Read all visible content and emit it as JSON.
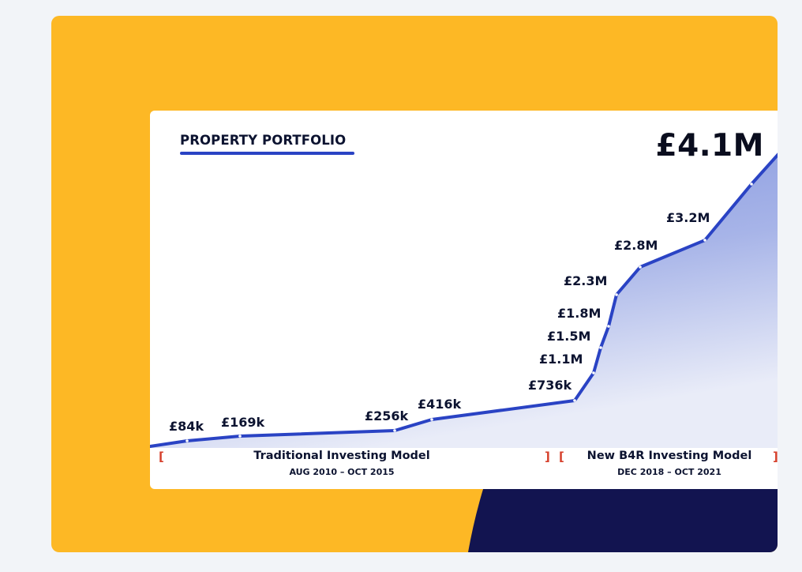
{
  "chart_data": {
    "type": "area",
    "title": "PROPERTY PORTFOLIO",
    "headline_value": "£4.1M",
    "xlabel": "",
    "ylabel": "",
    "ylim": [
      0,
      4100000
    ],
    "grid": false,
    "legend": "none",
    "points": [
      {
        "label": "",
        "value": 0
      },
      {
        "label": "£84k",
        "value": 84000
      },
      {
        "label": "£169k",
        "value": 169000
      },
      {
        "label": "£256k",
        "value": 256000
      },
      {
        "label": "£416k",
        "value": 416000
      },
      {
        "label": "£736k",
        "value": 736000
      },
      {
        "label": "£1.1M",
        "value": 1100000
      },
      {
        "label": "£1.5M",
        "value": 1500000
      },
      {
        "label": "£1.8M",
        "value": 1800000
      },
      {
        "label": "£2.3M",
        "value": 2300000
      },
      {
        "label": "£2.8M",
        "value": 2800000
      },
      {
        "label": "£3.2M",
        "value": 3200000
      },
      {
        "label": "",
        "value": 3700000
      },
      {
        "label": "£4.1M",
        "value": 4100000
      }
    ],
    "periods": [
      {
        "name": "Traditional Investing Model",
        "range": "AUG 2010 – OCT 2015"
      },
      {
        "name": "New B4R Investing Model",
        "range": "DEC 2018 – OCT 2021"
      }
    ]
  },
  "colors": {
    "page_background": "#f2f4f8",
    "panel_yellow": "#fdb825",
    "panel_navy": "#121450",
    "line_blue": "#2a43c4",
    "area_top": "#7d90dc",
    "bracket_red": "#d6402c"
  }
}
